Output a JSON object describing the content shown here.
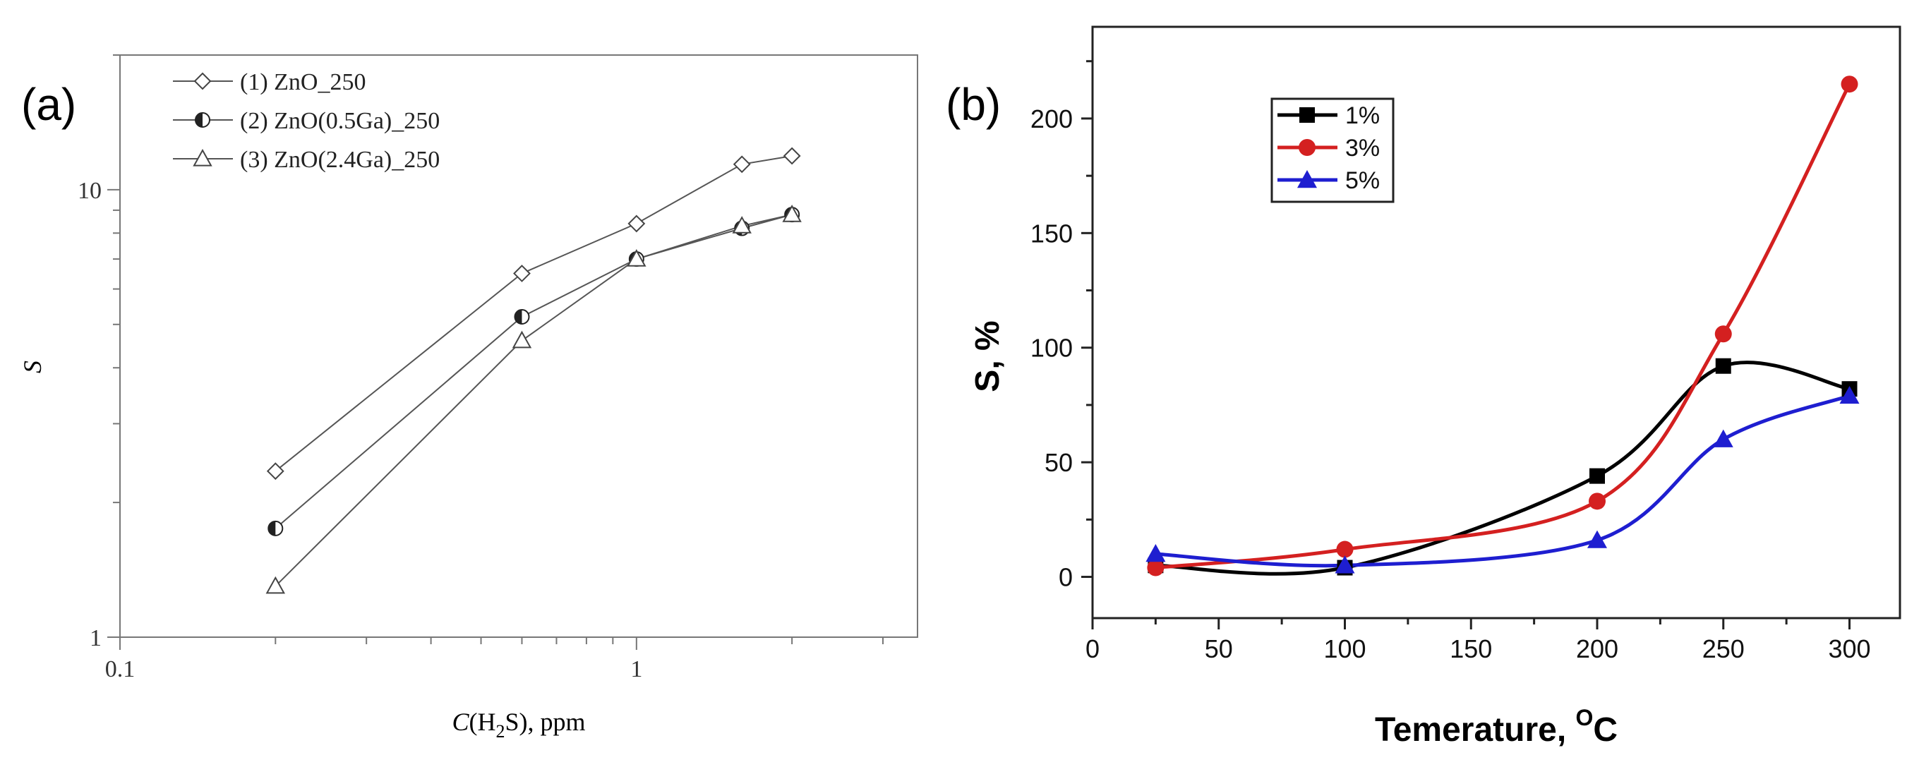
{
  "figure_type": "two-panel line chart",
  "chart_data": [
    {
      "panel_label": "(a)",
      "type": "line",
      "x_scale": "log",
      "y_scale": "log",
      "xlabel": {
        "pre": "C",
        "mid": "(H",
        "sub": "2",
        "post": "S), ppm"
      },
      "ylabel": "S",
      "xlim": [
        0.1,
        3.5
      ],
      "ylim": [
        1,
        20
      ],
      "x_ticks": [
        0.1,
        1
      ],
      "x_tick_labels": [
        "0.1",
        "1"
      ],
      "y_ticks": [
        1,
        10
      ],
      "y_tick_labels": [
        "1",
        "10"
      ],
      "legend_position": "top-left",
      "series": [
        {
          "name": "(1) ZnO_250",
          "marker": "diamond-open",
          "x": [
            0.2,
            0.6,
            1.0,
            1.6,
            2.0
          ],
          "y": [
            2.35,
            6.5,
            8.4,
            11.4,
            11.9
          ]
        },
        {
          "name": "(2) ZnO(0.5Ga)_250",
          "marker": "circle-half",
          "x": [
            0.2,
            0.6,
            1.0,
            1.6,
            2.0
          ],
          "y": [
            1.75,
            5.2,
            7.0,
            8.2,
            8.8
          ]
        },
        {
          "name": "(3) ZnO(2.4Ga)_250",
          "marker": "triangle-open",
          "x": [
            0.2,
            0.6,
            1.0,
            1.6,
            2.0
          ],
          "y": [
            1.3,
            4.6,
            7.0,
            8.3,
            8.8
          ]
        }
      ]
    },
    {
      "panel_label": "(b)",
      "type": "line",
      "xlabel": {
        "pre": "Temerature, ",
        "sup": "O",
        "post": "C"
      },
      "ylabel": "S, %",
      "xlim": [
        0,
        320
      ],
      "ylim": [
        -18,
        240
      ],
      "x_ticks": [
        0,
        50,
        100,
        150,
        200,
        250,
        300
      ],
      "x_tick_labels": [
        "0",
        "50",
        "100",
        "150",
        "200",
        "250",
        "300"
      ],
      "y_ticks": [
        0,
        50,
        100,
        150,
        200
      ],
      "y_tick_labels": [
        "0",
        "50",
        "100",
        "150",
        "200"
      ],
      "legend_position": "top-left",
      "series": [
        {
          "name": "1%",
          "color": "#000000",
          "marker": "square",
          "x": [
            25,
            100,
            200,
            250,
            300
          ],
          "y": [
            5,
            4,
            44,
            92,
            82
          ]
        },
        {
          "name": "3%",
          "color": "#d42020",
          "marker": "circle",
          "x": [
            25,
            100,
            200,
            250,
            300
          ],
          "y": [
            4,
            12,
            33,
            106,
            215
          ]
        },
        {
          "name": "5%",
          "color": "#1e1ed0",
          "marker": "triangle",
          "x": [
            25,
            100,
            200,
            250,
            300
          ],
          "y": [
            10,
            5,
            16,
            60,
            79
          ]
        }
      ]
    }
  ]
}
